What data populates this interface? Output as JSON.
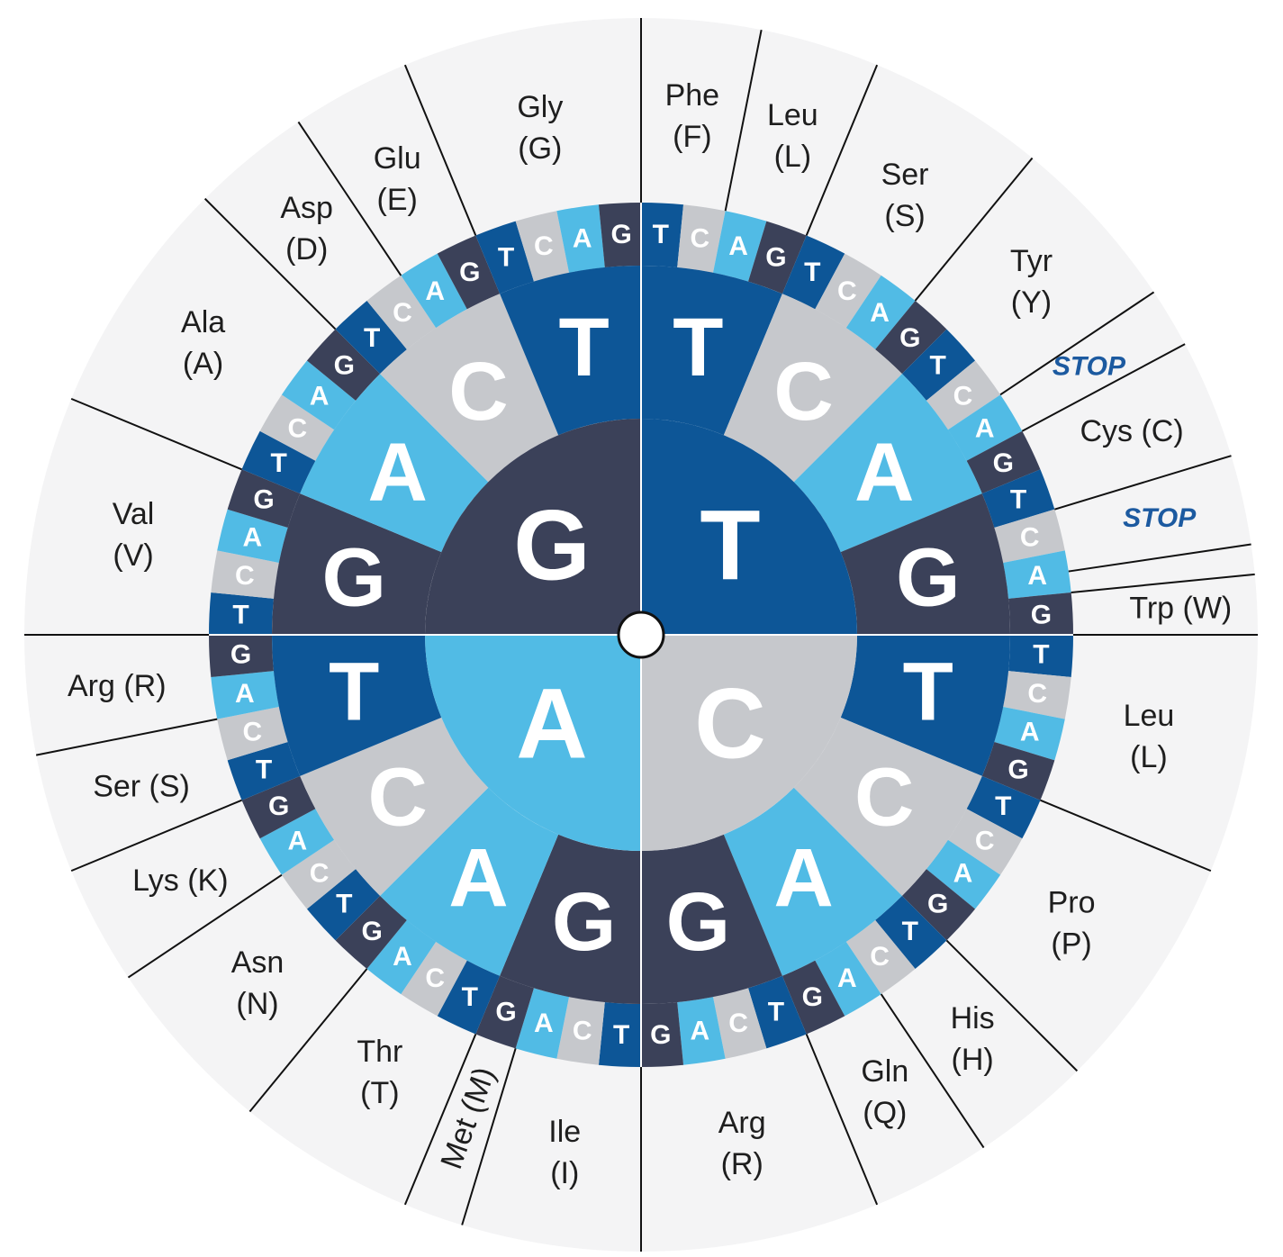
{
  "colors": {
    "G": "#3b4159",
    "T": "#0d5697",
    "C": "#c6c8cc",
    "A": "#51bbe5",
    "outer_ring": "#f4f4f5",
    "line": "#111111",
    "stop": "#1c5aa0",
    "hub": "#ffffff"
  },
  "inner": [
    "G",
    "T",
    "C",
    "A"
  ],
  "second": {
    "G": [
      "G",
      "A",
      "C",
      "T"
    ],
    "T": [
      "T",
      "C",
      "A",
      "G"
    ],
    "C": [
      "T",
      "C",
      "A",
      "G"
    ],
    "A": [
      "G",
      "A",
      "C",
      "T"
    ]
  },
  "third": {
    "G": [
      "T",
      "C",
      "A",
      "G"
    ],
    "T": [
      "G",
      "A",
      "C",
      "T"
    ]
  },
  "amino_acids": [
    {
      "name": "Phe",
      "code": "(F)"
    },
    {
      "name": "Leu",
      "code": "(L)"
    },
    {
      "name": "Ser",
      "code": "(S)"
    },
    {
      "name": "Tyr",
      "code": "(Y)"
    },
    {
      "name": "STOP",
      "code": "",
      "stop": true
    },
    {
      "name": "Cys (C)",
      "code": ""
    },
    {
      "name": "STOP",
      "code": "",
      "stop": true
    },
    {
      "name": "Trp (W)",
      "code": ""
    },
    {
      "name": "Leu",
      "code": "(L)"
    },
    {
      "name": "Pro",
      "code": "(P)"
    },
    {
      "name": "His",
      "code": "(H)"
    },
    {
      "name": "Gln",
      "code": "(Q)"
    },
    {
      "name": "Arg",
      "code": "(R)"
    },
    {
      "name": "Ile",
      "code": "(I)"
    },
    {
      "name": "Met (M)",
      "code": "",
      "rotated": true
    },
    {
      "name": "Thr",
      "code": "(T)"
    },
    {
      "name": "Asn",
      "code": "(N)"
    },
    {
      "name": "Lys (K)",
      "code": ""
    },
    {
      "name": "Ser (S)",
      "code": ""
    },
    {
      "name": "Arg (R)",
      "code": ""
    },
    {
      "name": "Val",
      "code": "(V)"
    },
    {
      "name": "Ala",
      "code": "(A)"
    },
    {
      "name": "Asp",
      "code": "(D)"
    },
    {
      "name": "Glu",
      "code": "(E)"
    },
    {
      "name": "Gly",
      "code": "(G)"
    }
  ]
}
